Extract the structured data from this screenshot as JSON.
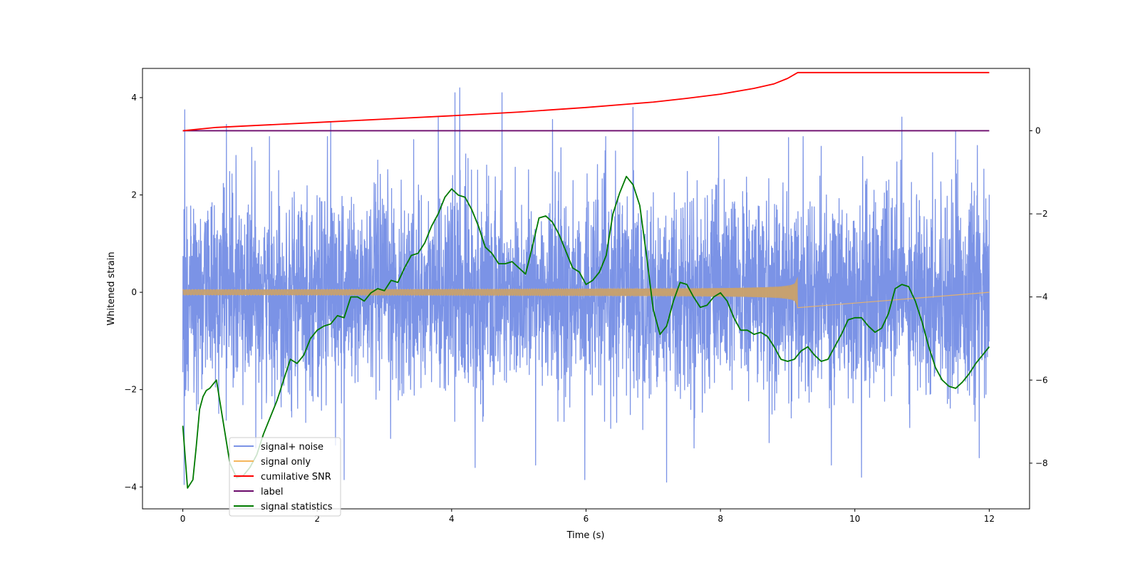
{
  "chart_data": {
    "type": "line",
    "title": "",
    "xlabel": "Time (s)",
    "ylabel": "Whitened strain",
    "y2label": "",
    "xlim": [
      -0.6,
      12.6
    ],
    "ylim": [
      -4.45,
      4.6
    ],
    "y2lim": [
      -9.1,
      1.5
    ],
    "xticks": [
      0,
      2,
      4,
      6,
      8,
      10,
      12
    ],
    "xtick_labels": [
      "0",
      "2",
      "4",
      "6",
      "8",
      "10",
      "12"
    ],
    "yticks": [
      -4,
      -2,
      0,
      2,
      4
    ],
    "ytick_labels": [
      "−4",
      "−2",
      "0",
      "2",
      "4"
    ],
    "y2ticks": [
      -8,
      -6,
      -4,
      -2,
      0
    ],
    "y2tick_labels": [
      "−8",
      "−6",
      "−4",
      "−2",
      "0"
    ],
    "legend_position": "lower-left",
    "series": [
      {
        "name": "signal+ noise",
        "color": "#7b93e6",
        "axis": "left",
        "style": "noise",
        "x_range": [
          0,
          12
        ],
        "amplitude_sigma": 1.0,
        "spikes": [
          {
            "x": 0.03,
            "y": 3.75
          },
          {
            "x": 0.65,
            "y": 3.45
          },
          {
            "x": 2.2,
            "y": 3.5
          },
          {
            "x": 3.8,
            "y": 3.6
          },
          {
            "x": 4.05,
            "y": 4.1
          },
          {
            "x": 4.12,
            "y": 4.2
          },
          {
            "x": 4.75,
            "y": 4.1
          },
          {
            "x": 5.5,
            "y": 3.55
          },
          {
            "x": 6.7,
            "y": 3.8
          },
          {
            "x": 9.5,
            "y": 3.0
          },
          {
            "x": 10.7,
            "y": 3.6
          },
          {
            "x": 11.5,
            "y": 3.3
          },
          {
            "x": 0.02,
            "y": -3.95
          },
          {
            "x": 2.4,
            "y": -3.85
          },
          {
            "x": 4.35,
            "y": -3.6
          },
          {
            "x": 5.25,
            "y": -3.55
          },
          {
            "x": 5.98,
            "y": -3.85
          },
          {
            "x": 7.2,
            "y": -3.9
          },
          {
            "x": 9.65,
            "y": -3.55
          },
          {
            "x": 10.1,
            "y": -3.8
          },
          {
            "x": 11.85,
            "y": -3.4
          }
        ]
      },
      {
        "name": "signal only",
        "color": "#f5b65c",
        "axis": "left",
        "style": "chirp",
        "x_range": [
          0,
          12
        ],
        "end_time": 9.15,
        "peak_amplitude": 0.35
      },
      {
        "name": "cumilative SNR",
        "color": "#ff0000",
        "axis": "right",
        "x": [
          0,
          0.5,
          1,
          2,
          3,
          4,
          5,
          6,
          7,
          7.5,
          8,
          8.5,
          8.8,
          9.0,
          9.15,
          12
        ],
        "values": [
          0,
          0.08,
          0.12,
          0.2,
          0.28,
          0.36,
          0.45,
          0.56,
          0.69,
          0.78,
          0.88,
          1.02,
          1.13,
          1.26,
          1.4,
          1.4
        ]
      },
      {
        "name": "label",
        "color": "#6b0a6b",
        "axis": "right",
        "x": [
          0,
          12
        ],
        "values": [
          0,
          0
        ]
      },
      {
        "name": "signal statistics",
        "color": "#007a00",
        "axis": "right",
        "x": [
          0,
          0.07,
          0.15,
          0.2,
          0.25,
          0.3,
          0.35,
          0.4,
          0.5,
          0.6,
          0.7,
          0.8,
          0.9,
          1.0,
          1.1,
          1.2,
          1.3,
          1.4,
          1.5,
          1.6,
          1.7,
          1.8,
          1.9,
          2.0,
          2.1,
          2.2,
          2.3,
          2.4,
          2.5,
          2.6,
          2.7,
          2.8,
          2.9,
          3.0,
          3.1,
          3.2,
          3.3,
          3.4,
          3.5,
          3.6,
          3.7,
          3.8,
          3.9,
          4.0,
          4.1,
          4.2,
          4.3,
          4.4,
          4.5,
          4.6,
          4.7,
          4.8,
          4.9,
          5.0,
          5.1,
          5.2,
          5.3,
          5.4,
          5.5,
          5.6,
          5.7,
          5.8,
          5.9,
          6.0,
          6.1,
          6.2,
          6.3,
          6.4,
          6.5,
          6.6,
          6.7,
          6.8,
          6.9,
          7.0,
          7.1,
          7.2,
          7.3,
          7.4,
          7.5,
          7.6,
          7.7,
          7.8,
          7.9,
          8.0,
          8.1,
          8.2,
          8.3,
          8.4,
          8.5,
          8.6,
          8.7,
          8.8,
          8.9,
          9.0,
          9.1,
          9.2,
          9.3,
          9.4,
          9.5,
          9.6,
          9.7,
          9.8,
          9.9,
          10.0,
          10.1,
          10.2,
          10.3,
          10.4,
          10.5,
          10.6,
          10.7,
          10.8,
          10.9,
          11.0,
          11.1,
          11.2,
          11.3,
          11.4,
          11.5,
          11.6,
          11.7,
          11.8,
          11.9,
          12.0
        ],
        "values": [
          -7.1,
          -8.6,
          -8.4,
          -7.6,
          -6.7,
          -6.4,
          -6.25,
          -6.2,
          -6.0,
          -7.0,
          -8.0,
          -8.35,
          -8.3,
          -8.1,
          -7.8,
          -7.3,
          -6.9,
          -6.5,
          -6.0,
          -5.5,
          -5.6,
          -5.4,
          -5.0,
          -4.8,
          -4.7,
          -4.65,
          -4.45,
          -4.5,
          -4.0,
          -4.0,
          -4.1,
          -3.9,
          -3.8,
          -3.85,
          -3.6,
          -3.65,
          -3.3,
          -3.0,
          -2.95,
          -2.7,
          -2.3,
          -2.0,
          -1.6,
          -1.4,
          -1.55,
          -1.6,
          -1.9,
          -2.3,
          -2.8,
          -2.95,
          -3.2,
          -3.2,
          -3.15,
          -3.3,
          -3.45,
          -2.8,
          -2.1,
          -2.05,
          -2.2,
          -2.5,
          -2.9,
          -3.3,
          -3.4,
          -3.7,
          -3.6,
          -3.4,
          -3.0,
          -2.0,
          -1.5,
          -1.1,
          -1.3,
          -1.8,
          -3.0,
          -4.3,
          -4.9,
          -4.7,
          -4.1,
          -3.65,
          -3.7,
          -4.0,
          -4.25,
          -4.2,
          -4.0,
          -3.9,
          -4.1,
          -4.5,
          -4.8,
          -4.8,
          -4.9,
          -4.85,
          -4.95,
          -5.2,
          -5.5,
          -5.55,
          -5.5,
          -5.3,
          -5.2,
          -5.4,
          -5.55,
          -5.5,
          -5.2,
          -4.9,
          -4.55,
          -4.5,
          -4.5,
          -4.7,
          -4.85,
          -4.75,
          -4.4,
          -3.8,
          -3.7,
          -3.75,
          -4.1,
          -4.6,
          -5.2,
          -5.7,
          -6.0,
          -6.15,
          -6.2,
          -6.05,
          -5.85,
          -5.6,
          -5.4,
          -5.2
        ]
      }
    ]
  }
}
